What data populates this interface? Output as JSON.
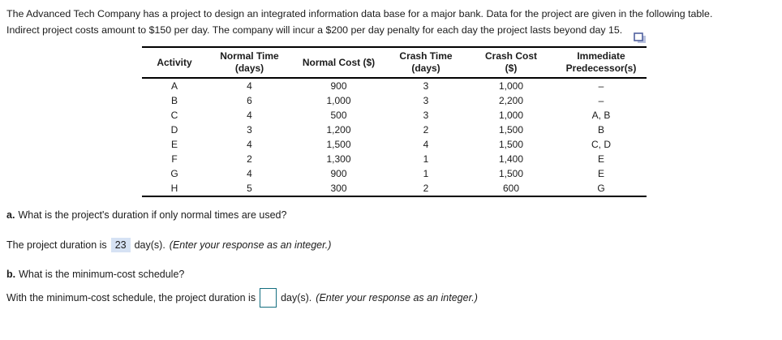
{
  "intro": {
    "line1": "The Advanced Tech Company has a project to design an integrated information data base for a major bank. Data for the project are given in the following table.",
    "line2": "Indirect project costs amount to $150 per day. The company will incur a $200 per day penalty for each day the project lasts beyond day 15."
  },
  "table": {
    "headers": [
      [
        "Activity"
      ],
      [
        "Normal Time",
        "(days)"
      ],
      [
        "Normal Cost ($)"
      ],
      [
        "Crash Time",
        "(days)"
      ],
      [
        "Crash Cost",
        "($)"
      ],
      [
        "Immediate",
        "Predecessor(s)"
      ]
    ],
    "rows": [
      [
        "A",
        "4",
        "900",
        "3",
        "1,000",
        "–"
      ],
      [
        "B",
        "6",
        "1,000",
        "3",
        "2,200",
        "–"
      ],
      [
        "C",
        "4",
        "500",
        "3",
        "1,000",
        "A, B"
      ],
      [
        "D",
        "3",
        "1,200",
        "2",
        "1,500",
        "B"
      ],
      [
        "E",
        "4",
        "1,500",
        "4",
        "1,500",
        "C, D"
      ],
      [
        "F",
        "2",
        "1,300",
        "1",
        "1,400",
        "E"
      ],
      [
        "G",
        "4",
        "900",
        "1",
        "1,500",
        "E"
      ],
      [
        "H",
        "5",
        "300",
        "2",
        "600",
        "G"
      ]
    ]
  },
  "question_a": {
    "prefix": "a.",
    "text": "What is the project's duration if only normal times are used?"
  },
  "answer_a": {
    "before": "The project duration is",
    "value": "23",
    "after": "day(s).",
    "note": "(Enter your response as an integer.)"
  },
  "question_b": {
    "prefix": "b.",
    "text": "What is the minimum-cost schedule?"
  },
  "answer_b": {
    "before": "With the minimum-cost schedule, the project duration is",
    "after": "day(s).",
    "note": "(Enter your response as an integer.)"
  },
  "colors": {
    "answer_highlight": "#d6e2f4",
    "input_border": "#146e80",
    "icon_front_stroke": "#50619f",
    "icon_back_fill": "#b9c1dd"
  }
}
